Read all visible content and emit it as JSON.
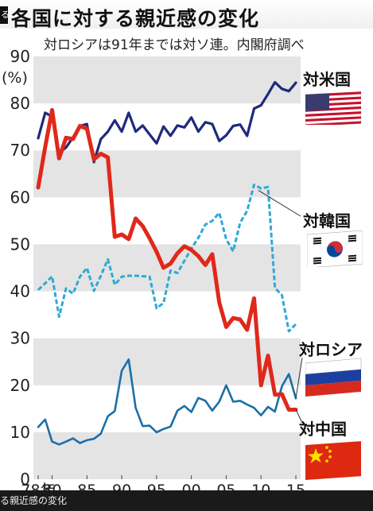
{
  "header": {
    "tab_text": "る",
    "title": "各国に対する親近感の変化",
    "subtitle": "対ロシアは91年までは対ソ連。内閣府調べ"
  },
  "footer": {
    "caption": "る親近感の変化"
  },
  "labels": {
    "us": "対米国",
    "kr": "対韓国",
    "ru": "対ロシア",
    "cn": "対中国"
  },
  "chart_data": {
    "type": "line",
    "title": "各国に対する親近感の変化",
    "subtitle": "対ロシアは91年までは対ソ連。内閣府調べ",
    "ylabel": "(%)",
    "ylim": [
      0,
      90
    ],
    "yticks": [
      0,
      10,
      20,
      30,
      40,
      50,
      60,
      70,
      80,
      90
    ],
    "xlim": [
      1978,
      2015
    ],
    "xticks": [
      {
        "year": 1978,
        "label": "78"
      },
      {
        "year": 1980,
        "label": "80"
      },
      {
        "year": 1985,
        "label": "85"
      },
      {
        "year": 1990,
        "label": "90"
      },
      {
        "year": 1995,
        "label": "95"
      },
      {
        "year": 2000,
        "label": "00"
      },
      {
        "year": 2005,
        "label": "05"
      },
      {
        "year": 2010,
        "label": "10"
      },
      {
        "year": 2015,
        "label": "15"
      }
    ],
    "x_axis_start_label": "78年",
    "grid": "horizontal bands",
    "x": [
      1978,
      1979,
      1980,
      1981,
      1982,
      1983,
      1984,
      1985,
      1986,
      1987,
      1988,
      1989,
      1990,
      1991,
      1992,
      1993,
      1994,
      1995,
      1996,
      1997,
      1998,
      1999,
      2000,
      2001,
      2002,
      2003,
      2004,
      2005,
      2006,
      2007,
      2008,
      2009,
      2010,
      2011,
      2012,
      2013,
      2014,
      2015
    ],
    "series": [
      {
        "name": "対米国",
        "color": "#1e2a7c",
        "style": "solid",
        "values": [
          72.6,
          78.0,
          77.2,
          69.5,
          70.6,
          72.8,
          75.2,
          75.6,
          67.5,
          72.4,
          74.0,
          76.4,
          74.0,
          78.0,
          74.0,
          75.3,
          73.4,
          71.5,
          75.1,
          73.1,
          75.3,
          74.9,
          77.0,
          74.0,
          76.0,
          75.6,
          72.0,
          73.2,
          75.2,
          75.5,
          73.1,
          78.9,
          79.6,
          82.0,
          84.5,
          83.1,
          82.6,
          84.4
        ]
      },
      {
        "name": "対韓国",
        "color": "#2ea9d6",
        "style": "dashed",
        "values": [
          40.3,
          41.7,
          43.2,
          34.6,
          40.6,
          39.5,
          43.1,
          45.0,
          40.1,
          43.3,
          46.8,
          41.4,
          43.1,
          43.3,
          43.3,
          43.2,
          43.1,
          36.4,
          37.5,
          44.4,
          43.9,
          46.5,
          49.1,
          51.4,
          54.2,
          55.0,
          56.7,
          51.1,
          48.5,
          54.6,
          57.1,
          62.7,
          61.9,
          62.2,
          40.7,
          39.2,
          31.5,
          33.0
        ]
      },
      {
        "name": "対ロシア",
        "color": "#1a6fa8",
        "style": "solid",
        "values": [
          11.1,
          12.7,
          8.0,
          7.4,
          8.0,
          8.7,
          7.7,
          8.3,
          8.6,
          9.7,
          13.4,
          14.5,
          23.1,
          25.5,
          15.2,
          11.3,
          11.4,
          10.0,
          10.7,
          11.2,
          14.6,
          15.6,
          14.3,
          17.3,
          16.7,
          14.6,
          16.5,
          20.0,
          16.5,
          16.7,
          15.9,
          15.2,
          13.6,
          15.4,
          14.4,
          19.8,
          22.4,
          17.2
        ]
      },
      {
        "name": "対中国",
        "color": "#e0281b",
        "style": "solid",
        "values": [
          62.1,
          70.7,
          78.6,
          68.3,
          72.7,
          72.4,
          75.2,
          74.6,
          68.1,
          69.3,
          68.5,
          51.6,
          52.1,
          51.1,
          55.5,
          53.9,
          51.3,
          48.4,
          45.0,
          45.9,
          48.1,
          49.6,
          48.8,
          47.5,
          45.6,
          47.9,
          37.6,
          32.4,
          34.3,
          34.0,
          31.8,
          38.5,
          20.0,
          26.3,
          18.0,
          18.1,
          14.8,
          14.8
        ]
      }
    ]
  },
  "colors": {
    "band": "#e4e4e4",
    "us_flag_blue": "#3c3b6e",
    "stripe_red": "#c8102e",
    "kr_red": "#cd2e3a",
    "kr_blue": "#0047a0",
    "ru_blue": "#1c3fa0",
    "ru_red": "#d52b1e",
    "cn_red": "#de2910",
    "cn_star": "#ffde00"
  }
}
